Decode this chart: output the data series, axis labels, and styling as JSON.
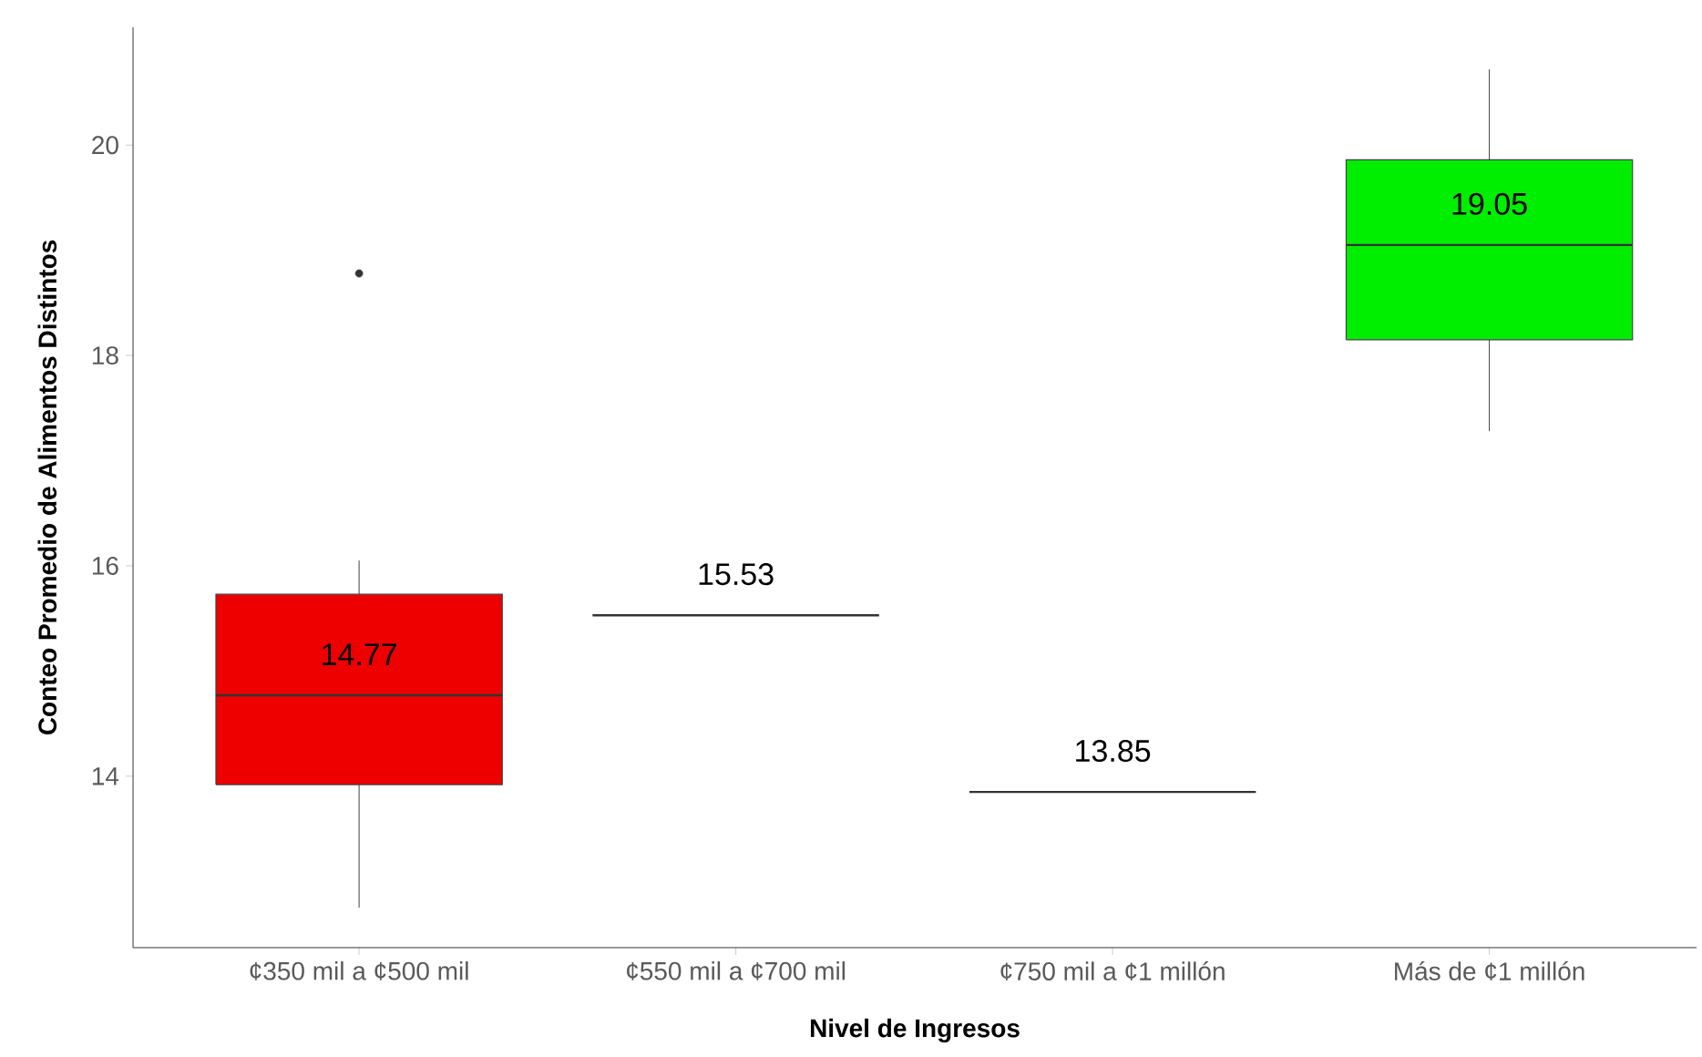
{
  "chart_data": {
    "type": "box",
    "xlabel": "Nivel de Ingresos",
    "ylabel": "Conteo Promedio de Alimentos Distintos",
    "categories": [
      "¢350 mil a ¢500 mil",
      "¢550 mil a ¢700 mil",
      "¢750 mil a ¢1 millón",
      "Más de ¢1 millón"
    ],
    "boxes": [
      {
        "low": 12.75,
        "q1": 13.92,
        "median": 14.77,
        "q3": 15.73,
        "high": 16.05,
        "outliers": [
          18.78
        ]
      },
      {
        "low": 15.53,
        "q1": 15.53,
        "median": 15.53,
        "q3": 15.53,
        "high": 15.53
      },
      {
        "low": 13.85,
        "q1": 13.85,
        "median": 13.85,
        "q3": 13.85,
        "high": 13.85
      },
      {
        "low": 17.28,
        "q1": 18.15,
        "median": 19.05,
        "q3": 19.86,
        "high": 20.72
      }
    ],
    "colors": [
      "#ee0000",
      null,
      null,
      "#00ee00"
    ],
    "annotations": [
      "14.77",
      "15.53",
      "13.85",
      "19.05"
    ],
    "ylim": [
      12.37,
      21.12
    ],
    "yticks": [
      14,
      16,
      18,
      20
    ],
    "grid": false
  }
}
